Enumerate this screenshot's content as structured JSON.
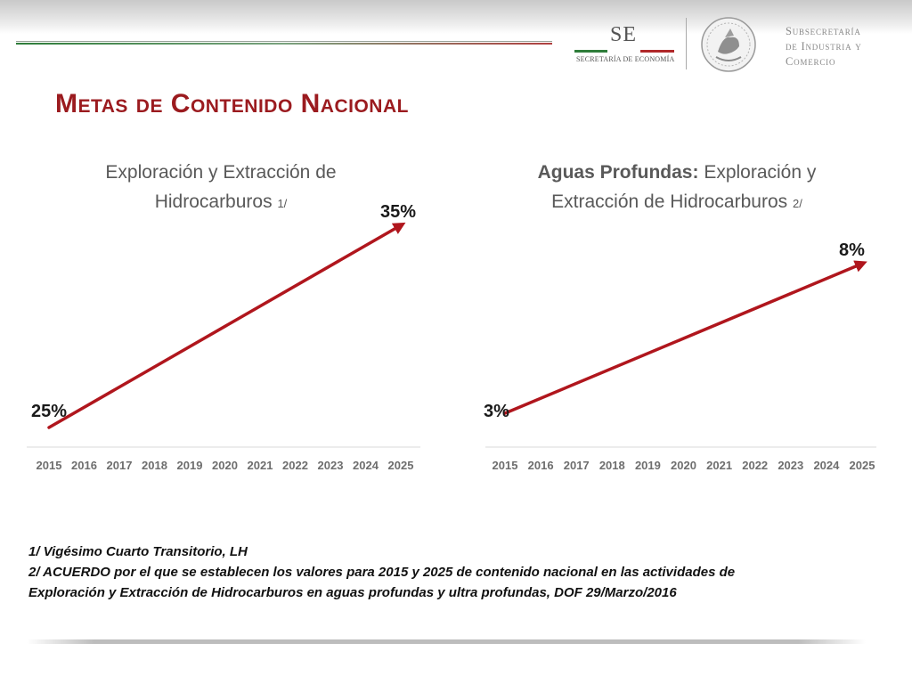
{
  "header": {
    "se_mark": "SE",
    "se_text": "SECRETARÍA DE ECONOMÍA",
    "subsecretaria_lines": [
      "Subsecretaría",
      "de Industria y",
      "Comercio"
    ]
  },
  "page_title": "Metas de Contenido Nacional",
  "chart_data": [
    {
      "type": "line",
      "title_lines": [
        "Exploración y Extracción de",
        "Hidrocarburos"
      ],
      "title_note": "1/",
      "x": [
        "2015",
        "2016",
        "2017",
        "2018",
        "2019",
        "2020",
        "2021",
        "2022",
        "2023",
        "2024",
        "2025"
      ],
      "series": [
        {
          "x": [
            "2015",
            "2025"
          ],
          "values": [
            25,
            35
          ]
        }
      ],
      "labels": {
        "start": "25%",
        "end": "35%"
      },
      "ylim": [
        25,
        35
      ],
      "grid": false,
      "color": "#b0161d"
    },
    {
      "type": "line",
      "title_bold": "Aguas Profundas:",
      "title_lines": [
        "Exploración y",
        "Extracción de Hidrocarburos"
      ],
      "title_note": "2/",
      "x": [
        "2015",
        "2016",
        "2017",
        "2018",
        "2019",
        "2020",
        "2021",
        "2022",
        "2023",
        "2024",
        "2025"
      ],
      "series": [
        {
          "x": [
            "2015",
            "2025"
          ],
          "values": [
            3,
            8
          ]
        }
      ],
      "labels": {
        "start": "3%",
        "end": "8%"
      },
      "ylim": [
        3,
        8
      ],
      "grid": false,
      "color": "#b0161d"
    }
  ],
  "footnotes": [
    "1/ Vigésimo Cuarto Transitorio, LH",
    "2/  ACUERDO por el que se establecen los valores para 2015 y 2025 de contenido nacional en las actividades de",
    "Exploración y Extracción de Hidrocarburos en aguas profundas y ultra profundas, DOF 29/Marzo/2016"
  ]
}
